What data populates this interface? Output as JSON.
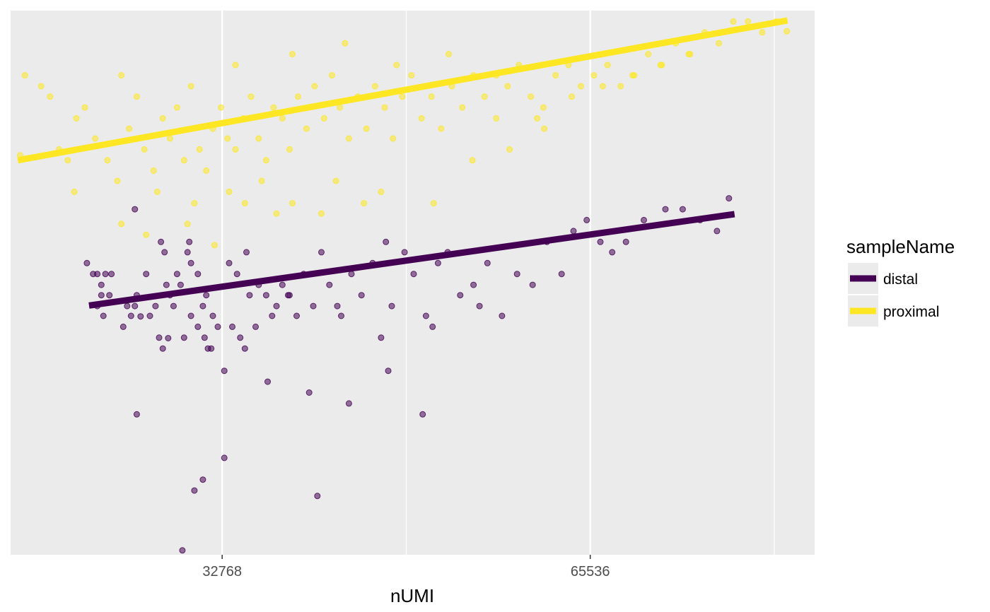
{
  "chart_data": {
    "type": "scatter",
    "title": "",
    "xlabel": "nUMI",
    "ylabel": "",
    "x_scale": "log2",
    "x_ticks": [
      32768,
      65536
    ],
    "x_tick_labels": [
      "32768",
      "65536"
    ],
    "xlim": [
      22000,
      100000
    ],
    "ylim": [
      0,
      100
    ],
    "grid": "major and minor vertical gridlines only",
    "legend": {
      "title": "sampleName",
      "placement": "right",
      "entries": [
        "distal",
        "proximal"
      ]
    },
    "colors": {
      "distal": "#440154",
      "proximal": "#FDE725",
      "panel_background": "#EBEBEB",
      "gridline": "#FFFFFF"
    },
    "series": [
      {
        "name": "distal",
        "fit_line": {
          "x": [
            25500,
            86000
          ],
          "y": [
            45.8,
            62.6
          ]
        },
        "points": [
          [
            25400,
            53.6
          ],
          [
            25700,
            51.6
          ],
          [
            25900,
            51.6
          ],
          [
            26100,
            49.6
          ],
          [
            26300,
            51.6
          ],
          [
            26100,
            47.7
          ],
          [
            25900,
            45.7
          ],
          [
            26200,
            43.9
          ],
          [
            26500,
            47.7
          ],
          [
            26600,
            51.6
          ],
          [
            27200,
            41.9
          ],
          [
            27600,
            43.9
          ],
          [
            27800,
            45.7
          ],
          [
            27400,
            45.7
          ],
          [
            27900,
            47.7
          ],
          [
            28400,
            51.6
          ],
          [
            28600,
            43.9
          ],
          [
            28900,
            45.7
          ],
          [
            29100,
            39.9
          ],
          [
            29200,
            57.5
          ],
          [
            29400,
            55.6
          ],
          [
            29700,
            47.7
          ],
          [
            29900,
            45.7
          ],
          [
            29500,
            49.6
          ],
          [
            30100,
            51.6
          ],
          [
            30300,
            49.6
          ],
          [
            29300,
            37.9
          ],
          [
            30700,
            55.6
          ],
          [
            30500,
            39.9
          ],
          [
            30800,
            57.5
          ],
          [
            30900,
            43.9
          ],
          [
            31300,
            51.6
          ],
          [
            31600,
            45.7
          ],
          [
            31300,
            41.9
          ],
          [
            31800,
            47.7
          ],
          [
            31700,
            39.9
          ],
          [
            31900,
            37.9
          ],
          [
            32200,
            43.9
          ],
          [
            32500,
            41.9
          ],
          [
            32100,
            37.9
          ],
          [
            33200,
            53.6
          ],
          [
            33400,
            41.9
          ],
          [
            33700,
            51.6
          ],
          [
            33900,
            39.9
          ],
          [
            34200,
            37.9
          ],
          [
            34500,
            47.7
          ],
          [
            34900,
            41.9
          ],
          [
            35100,
            49.6
          ],
          [
            35600,
            47.7
          ],
          [
            36000,
            43.9
          ],
          [
            36300,
            45.7
          ],
          [
            36700,
            49.6
          ],
          [
            37200,
            47.7
          ],
          [
            37700,
            43.9
          ],
          [
            38200,
            51.6
          ],
          [
            38900,
            45.7
          ],
          [
            39500,
            55.6
          ],
          [
            40100,
            49.6
          ],
          [
            41000,
            43.9
          ],
          [
            41800,
            51.6
          ],
          [
            42600,
            47.7
          ],
          [
            43500,
            53.6
          ],
          [
            44200,
            39.9
          ],
          [
            45100,
            45.7
          ],
          [
            46200,
            55.6
          ],
          [
            47000,
            51.6
          ],
          [
            48100,
            43.9
          ],
          [
            49200,
            53.6
          ],
          [
            50100,
            55.6
          ],
          [
            51300,
            47.7
          ],
          [
            52600,
            49.6
          ],
          [
            54000,
            53.6
          ],
          [
            55500,
            43.9
          ],
          [
            57100,
            51.6
          ],
          [
            58800,
            49.6
          ],
          [
            60400,
            57.5
          ],
          [
            62100,
            51.6
          ],
          [
            63500,
            59.5
          ],
          [
            65100,
            61.5
          ],
          [
            66800,
            57.5
          ],
          [
            68300,
            55.6
          ],
          [
            70100,
            57.5
          ],
          [
            72500,
            61.5
          ],
          [
            75500,
            63.5
          ],
          [
            78000,
            63.5
          ],
          [
            80600,
            61.5
          ],
          [
            83200,
            59.5
          ],
          [
            85100,
            65.5
          ],
          [
            27800,
            63.5
          ],
          [
            30900,
            53.6
          ],
          [
            34300,
            55.6
          ],
          [
            37100,
            47.7
          ],
          [
            40700,
            45.7
          ],
          [
            44600,
            57.5
          ],
          [
            48700,
            41.9
          ],
          [
            53200,
            45.7
          ],
          [
            29600,
            39.8
          ],
          [
            28100,
            43.8
          ],
          [
            32900,
            33.8
          ],
          [
            35700,
            31.8
          ],
          [
            38600,
            29.8
          ],
          [
            41600,
            27.8
          ],
          [
            44800,
            33.8
          ],
          [
            47800,
            25.8
          ],
          [
            32900,
            17.8
          ],
          [
            31100,
            11.8
          ],
          [
            27900,
            25.8
          ],
          [
            31600,
            13.8
          ],
          [
            39200,
            10.8
          ],
          [
            30400,
            0.8
          ]
        ]
      },
      {
        "name": "proximal",
        "fit_line": {
          "x": [
            22300,
            95000
          ],
          "y": [
            72.5,
            98.2
          ]
        },
        "points": [
          [
            22400,
            73.4
          ],
          [
            22600,
            88.1
          ],
          [
            23300,
            86.1
          ],
          [
            23700,
            84.2
          ],
          [
            24100,
            74.5
          ],
          [
            24500,
            72.5
          ],
          [
            24900,
            80.2
          ],
          [
            25300,
            82.2
          ],
          [
            25800,
            76.5
          ],
          [
            26400,
            72.5
          ],
          [
            27100,
            88.1
          ],
          [
            27500,
            78.3
          ],
          [
            27900,
            84.2
          ],
          [
            28300,
            74.5
          ],
          [
            28800,
            70.6
          ],
          [
            29300,
            80.2
          ],
          [
            29700,
            76.5
          ],
          [
            30100,
            82.2
          ],
          [
            30500,
            72.5
          ],
          [
            30900,
            86.1
          ],
          [
            31400,
            74.5
          ],
          [
            31800,
            70.6
          ],
          [
            32200,
            78.3
          ],
          [
            32700,
            82.2
          ],
          [
            33100,
            76.5
          ],
          [
            33600,
            74.5
          ],
          [
            34100,
            80.2
          ],
          [
            34600,
            84.2
          ],
          [
            35100,
            76.5
          ],
          [
            35600,
            72.5
          ],
          [
            36100,
            82.2
          ],
          [
            36700,
            80.2
          ],
          [
            37200,
            74.5
          ],
          [
            37800,
            84.2
          ],
          [
            38400,
            78.3
          ],
          [
            39000,
            86.1
          ],
          [
            39700,
            80.2
          ],
          [
            40300,
            88.1
          ],
          [
            40900,
            82.2
          ],
          [
            41600,
            76.5
          ],
          [
            42300,
            84.2
          ],
          [
            43000,
            78.3
          ],
          [
            43700,
            86.1
          ],
          [
            44500,
            82.2
          ],
          [
            45200,
            76.5
          ],
          [
            46000,
            84.2
          ],
          [
            46800,
            88.1
          ],
          [
            47700,
            80.2
          ],
          [
            48600,
            84.2
          ],
          [
            49500,
            78.3
          ],
          [
            50500,
            86.1
          ],
          [
            51500,
            82.2
          ],
          [
            52600,
            88.1
          ],
          [
            53700,
            84.2
          ],
          [
            54900,
            80.2
          ],
          [
            56100,
            86.1
          ],
          [
            57300,
            90.0
          ],
          [
            58600,
            84.2
          ],
          [
            60000,
            82.2
          ],
          [
            61400,
            88.1
          ],
          [
            62900,
            90.0
          ],
          [
            64400,
            86.1
          ],
          [
            66000,
            88.1
          ],
          [
            67700,
            90.0
          ],
          [
            69400,
            86.1
          ],
          [
            71200,
            88.1
          ],
          [
            73100,
            92.0
          ],
          [
            75000,
            90.0
          ],
          [
            77000,
            94.0
          ],
          [
            79100,
            92.0
          ],
          [
            81300,
            96.0
          ],
          [
            83500,
            94.0
          ],
          [
            85800,
            98.0
          ],
          [
            88200,
            98.0
          ],
          [
            90600,
            96.0
          ],
          [
            94900,
            96.2
          ],
          [
            93000,
            98.0
          ],
          [
            24800,
            66.7
          ],
          [
            26900,
            68.7
          ],
          [
            29000,
            66.7
          ],
          [
            31100,
            64.6
          ],
          [
            33200,
            66.7
          ],
          [
            35300,
            68.7
          ],
          [
            37400,
            64.6
          ],
          [
            40600,
            68.7
          ],
          [
            44200,
            66.7
          ],
          [
            48800,
            64.6
          ],
          [
            52500,
            72.5
          ],
          [
            56300,
            74.5
          ],
          [
            60100,
            78.3
          ],
          [
            63300,
            84.2
          ],
          [
            67100,
            86.1
          ],
          [
            71000,
            88.1
          ],
          [
            74800,
            90.0
          ],
          [
            78900,
            92.0
          ],
          [
            33600,
            90.0
          ],
          [
            37400,
            92.0
          ],
          [
            41300,
            94.0
          ],
          [
            45500,
            90.0
          ],
          [
            50200,
            92.0
          ],
          [
            54900,
            88.1
          ],
          [
            59300,
            80.2
          ],
          [
            27100,
            60.8
          ],
          [
            28400,
            58.8
          ],
          [
            30700,
            60.8
          ],
          [
            32300,
            56.9
          ],
          [
            34200,
            64.6
          ],
          [
            36300,
            62.7
          ],
          [
            39500,
            62.7
          ],
          [
            42800,
            64.6
          ]
        ]
      }
    ]
  }
}
